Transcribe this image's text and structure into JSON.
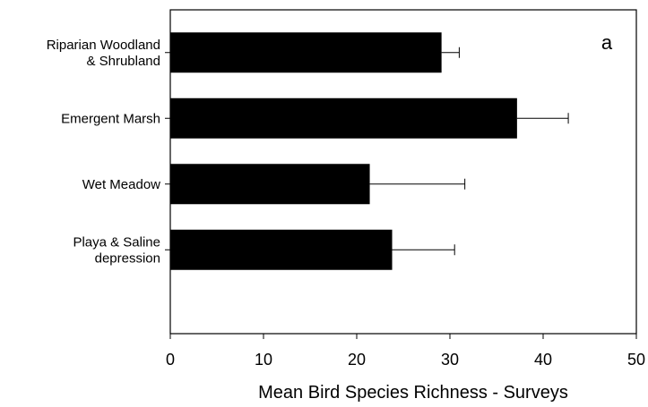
{
  "chart_data": {
    "type": "bar",
    "orientation": "horizontal",
    "panel_label": "a",
    "categories": [
      [
        "Riparian Woodland",
        "& Shrubland"
      ],
      [
        "Emergent Marsh"
      ],
      [
        "Wet Meadow"
      ],
      [
        "Playa & Saline",
        "depression"
      ]
    ],
    "values": [
      29.1,
      37.2,
      21.4,
      23.8
    ],
    "error_plus": [
      1.9,
      5.5,
      10.2,
      6.7
    ],
    "xlabel": "Mean Bird Species Richness - Surveys",
    "ylabel": "",
    "xlim": [
      0,
      50
    ],
    "xticks": [
      0,
      10,
      20,
      30,
      40,
      50
    ],
    "grid": false,
    "bar_color": "#000000"
  }
}
